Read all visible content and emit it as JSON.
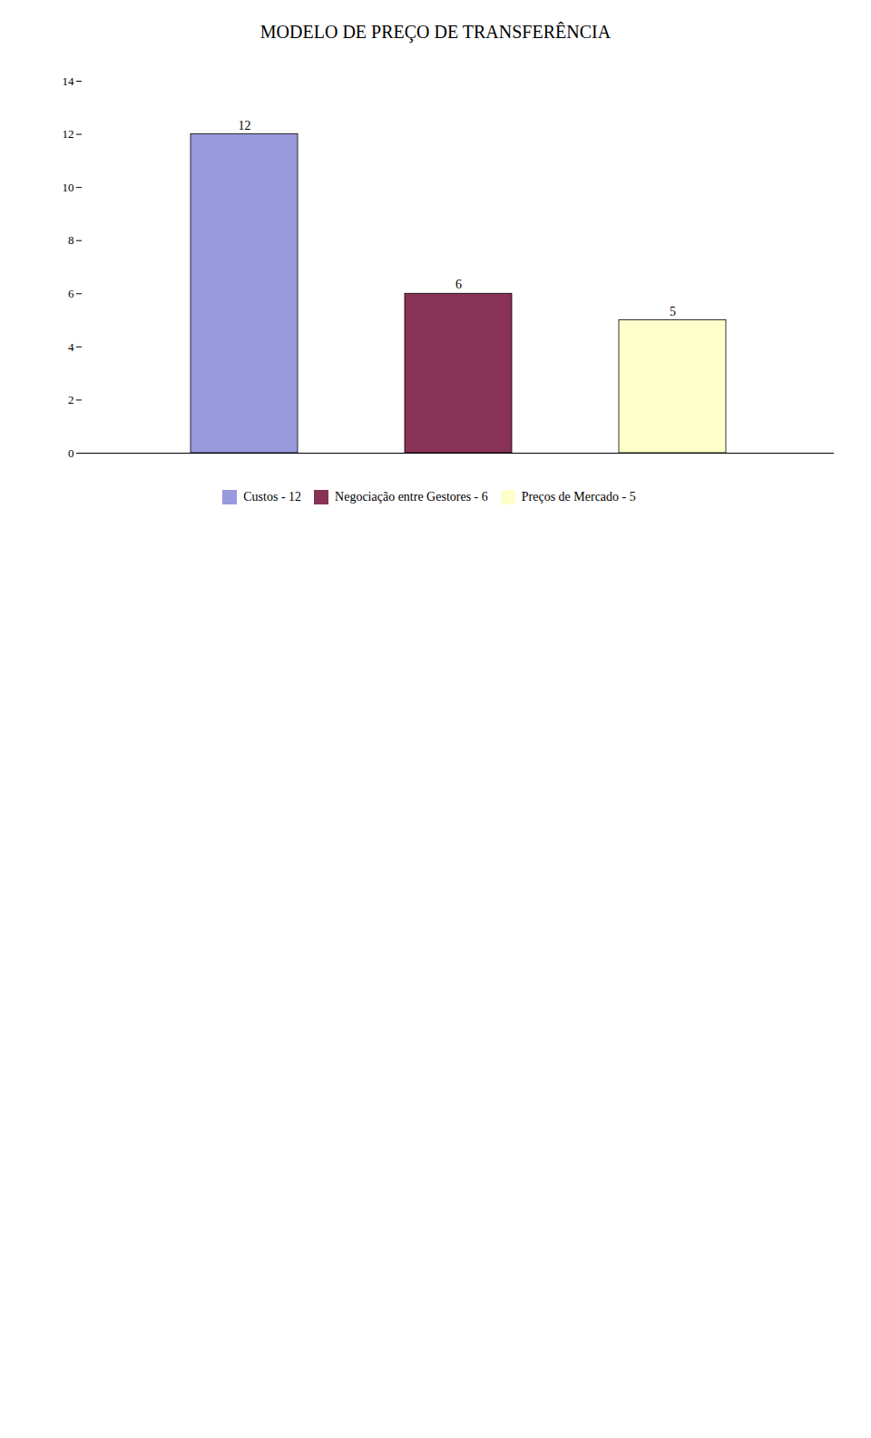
{
  "chart_data": {
    "type": "bar",
    "title": "MODELO DE PREÇO DE TRANSFERÊNCIA",
    "categories": [
      "Custos - 12",
      "Negociação entre Gestores - 6",
      "Preços de Mercado - 5"
    ],
    "values": [
      12,
      6,
      5
    ],
    "colors": [
      "#9999dd",
      "#883355",
      "#ffffcc"
    ],
    "ylim": [
      0,
      14
    ],
    "yticks": [
      0,
      2,
      4,
      6,
      8,
      10,
      12,
      14
    ],
    "grid": false,
    "data_labels": true,
    "legend": "bottom",
    "tick_labels": "y"
  }
}
